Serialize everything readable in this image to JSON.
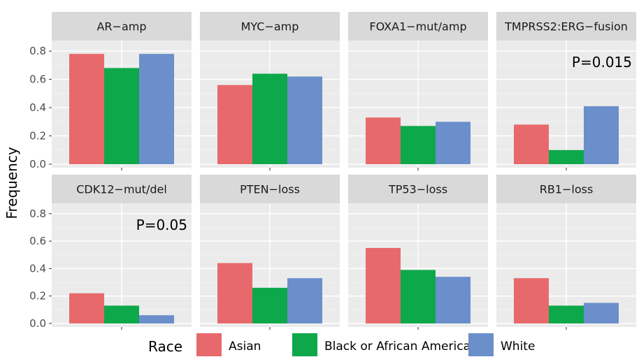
{
  "chart_data": {
    "type": "bar",
    "layout": "facet_grid_2x4",
    "ylabel": "Frequency",
    "ylim": [
      0,
      0.85
    ],
    "yticks": [
      "0.0",
      "0.2",
      "0.4",
      "0.6",
      "0.8"
    ],
    "legend": {
      "title": "Race",
      "position": "bottom",
      "entries": [
        {
          "name": "Asian",
          "color": "#E8696B"
        },
        {
          "name": "Black or African American",
          "color": "#0DA84A"
        },
        {
          "name": "White",
          "color": "#6A8FCB"
        }
      ]
    },
    "series": [
      "Asian",
      "Black or African American",
      "White"
    ],
    "panels": [
      {
        "title": "AR−amp",
        "values": [
          0.78,
          0.68,
          0.78
        ],
        "annotation": ""
      },
      {
        "title": "MYC−amp",
        "values": [
          0.56,
          0.64,
          0.62
        ],
        "annotation": ""
      },
      {
        "title": "FOXA1−mut/amp",
        "values": [
          0.33,
          0.27,
          0.3
        ],
        "annotation": ""
      },
      {
        "title": "TMPRSS2:ERG−fusion",
        "values": [
          0.28,
          0.1,
          0.41
        ],
        "annotation": "P=0.015"
      },
      {
        "title": "CDK12−mut/del",
        "values": [
          0.22,
          0.13,
          0.06
        ],
        "annotation": "P=0.05"
      },
      {
        "title": "PTEN−loss",
        "values": [
          0.44,
          0.26,
          0.33
        ],
        "annotation": ""
      },
      {
        "title": "TP53−loss",
        "values": [
          0.55,
          0.39,
          0.34
        ],
        "annotation": ""
      },
      {
        "title": "RB1−loss",
        "values": [
          0.33,
          0.13,
          0.15
        ],
        "annotation": ""
      }
    ]
  }
}
